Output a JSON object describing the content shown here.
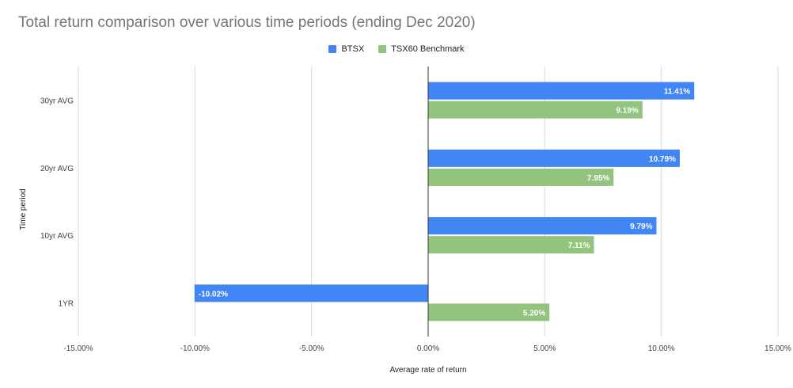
{
  "chart_data": {
    "type": "bar",
    "orientation": "horizontal",
    "title": "Total return comparison over various time periods (ending Dec 2020)",
    "xlabel": "Average rate of return",
    "ylabel": "Time period",
    "categories": [
      "30yr AVG",
      "20yr AVG",
      "10yr AVG",
      "1YR"
    ],
    "series": [
      {
        "name": "BTSX",
        "color": "#4285f4",
        "values": [
          11.41,
          10.79,
          9.79,
          -10.02
        ],
        "labels": [
          "11.41%",
          "10.79%",
          "9.79%",
          "-10.02%"
        ]
      },
      {
        "name": "TSX60 Benchmark",
        "color": "#93c47d",
        "values": [
          9.19,
          7.95,
          7.11,
          5.2
        ],
        "labels": [
          "9.19%",
          "7.95%",
          "7.11%",
          "5.20%"
        ]
      }
    ],
    "xlim": [
      -15,
      15
    ],
    "xticks": [
      -15,
      -10,
      -5,
      0,
      5,
      10,
      15
    ],
    "xtick_labels": [
      "-15.00%",
      "-10.00%",
      "-5.00%",
      "0.00%",
      "5.00%",
      "10.00%",
      "15.00%"
    ],
    "grid": true,
    "legend_position": "top"
  }
}
